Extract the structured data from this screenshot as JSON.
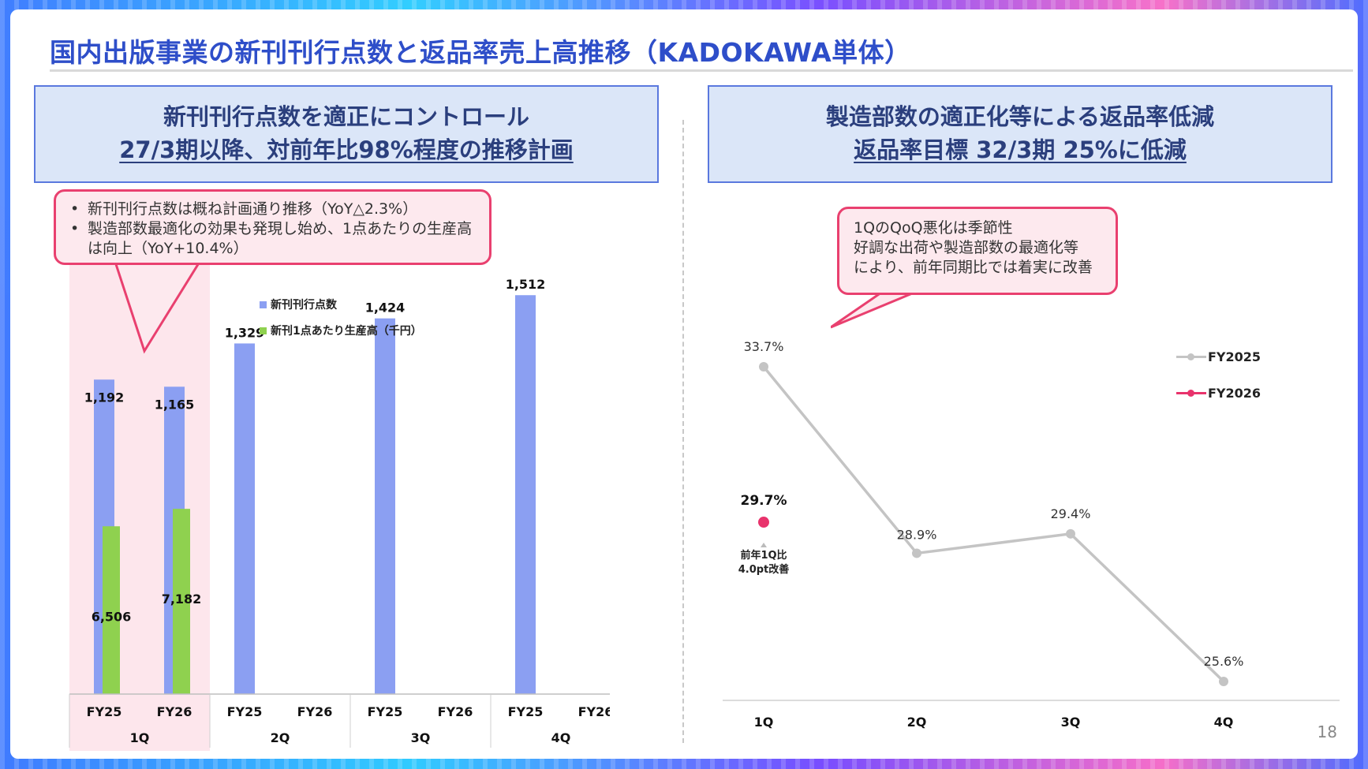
{
  "title": "国内出版事業の新刊刊行点数と返品率売上高推移（KADOKAWA単体）",
  "left_header": {
    "line1": "新刊刊行点数を適正にコントロール",
    "line2": "27/3期以降、対前年比98%程度の推移計画"
  },
  "right_header": {
    "line1": "製造部数の適正化等による返品率低減",
    "line2": "返品率目標 32/3期 25%に低減"
  },
  "left_callout": {
    "bullet1": "新刊刊行点数は概ね計画通り推移（YoY△2.3%）",
    "bullet2": "製造部数最適化の効果も発現し始め、1点あたりの生産高は向上（YoY+10.4%）"
  },
  "right_callout": {
    "line1": "1QのQoQ悪化は季節性",
    "line2": "好調な出荷や製造部数の最適化等",
    "line3": "により、前年同期比では着実に改善"
  },
  "colors": {
    "blue_bar": "#8b9ff2",
    "green_bar": "#8fd14f",
    "fy2025_line": "#c4c4c4",
    "fy2026_point": "#e8336c",
    "highlight": "#fde6ec"
  },
  "chart_data": [
    {
      "type": "bar",
      "legend": [
        "新刊刊行点数",
        "新刊1点あたり生産高（千円）"
      ],
      "quarters": [
        "1Q",
        "2Q",
        "3Q",
        "4Q"
      ],
      "bar_labels": [
        "FY25",
        "FY26"
      ],
      "series": [
        {
          "name": "新刊刊行点数",
          "points": [
            {
              "quarter": "1Q",
              "year": "FY25",
              "value": 1192,
              "label": "1,192"
            },
            {
              "quarter": "1Q",
              "year": "FY26",
              "value": 1165,
              "label": "1,165"
            },
            {
              "quarter": "2Q",
              "year": "FY25",
              "value": 1329,
              "label": "1,329"
            },
            {
              "quarter": "3Q",
              "year": "FY25",
              "value": 1424,
              "label": "1,424"
            },
            {
              "quarter": "4Q",
              "year": "FY25",
              "value": 1512,
              "label": "1,512"
            }
          ]
        },
        {
          "name": "新刊1点あたり生産高（千円）",
          "points": [
            {
              "quarter": "1Q",
              "year": "FY25",
              "value": 6506,
              "label": "6,506"
            },
            {
              "quarter": "1Q",
              "year": "FY26",
              "value": 7182,
              "label": "7,182"
            }
          ]
        }
      ],
      "highlight_quarter": "1Q"
    },
    {
      "type": "line",
      "categories": [
        "1Q",
        "2Q",
        "3Q",
        "4Q"
      ],
      "series": [
        {
          "name": "FY2025",
          "values": [
            33.7,
            28.9,
            29.4,
            25.6
          ],
          "labels": [
            "33.7%",
            "28.9%",
            "29.4%",
            "25.6%"
          ]
        },
        {
          "name": "FY2026",
          "values": [
            29.7,
            null,
            null,
            null
          ],
          "labels": [
            "29.7%",
            "",
            "",
            ""
          ]
        }
      ],
      "annotation": {
        "line1": "前年1Q比",
        "line2": "4.0pt改善"
      },
      "ylim": [
        24,
        35
      ]
    }
  ],
  "page_number": "18"
}
